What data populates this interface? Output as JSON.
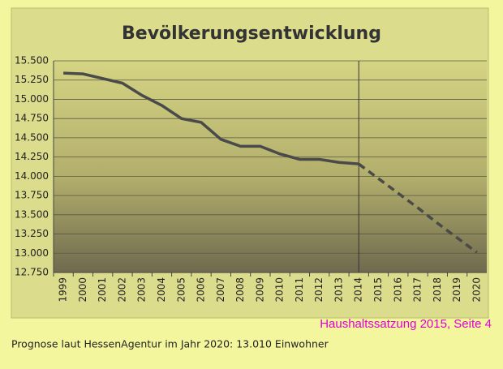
{
  "chart_data": {
    "type": "line",
    "title": "Bevölkerungsentwicklung",
    "categories": [
      "1999",
      "2000",
      "2001",
      "2002",
      "2003",
      "2004",
      "2005",
      "2006",
      "2007",
      "2008",
      "2009",
      "2010",
      "2011",
      "2012",
      "2013",
      "2014",
      "2015",
      "2016",
      "2017",
      "2018",
      "2019",
      "2020"
    ],
    "series": [
      {
        "color": "#4a4a4a",
        "dashed": false,
        "values": [
          15340,
          15330,
          15270,
          15210,
          15050,
          14920,
          14750,
          14700,
          14480,
          14390,
          14390,
          14290,
          14220,
          14220,
          14180,
          14160,
          null,
          null,
          null,
          null,
          null,
          null
        ]
      },
      {
        "color": "#4a4a4a",
        "dashed": true,
        "values": [
          null,
          null,
          null,
          null,
          null,
          null,
          null,
          null,
          null,
          null,
          null,
          null,
          null,
          null,
          null,
          14160,
          13970,
          13780,
          13590,
          13390,
          13200,
          13010
        ]
      }
    ],
    "ylim": [
      12750,
      15500
    ],
    "yticks": [
      {
        "value": 12750,
        "label": "12.750"
      },
      {
        "value": 13000,
        "label": "13.000"
      },
      {
        "value": 13250,
        "label": "13.250"
      },
      {
        "value": 13500,
        "label": "13.500"
      },
      {
        "value": 13750,
        "label": "13.750"
      },
      {
        "value": 14000,
        "label": "14.000"
      },
      {
        "value": 14250,
        "label": "14.250"
      },
      {
        "value": 14500,
        "label": "14.500"
      },
      {
        "value": 14750,
        "label": "14.750"
      },
      {
        "value": 15000,
        "label": "15.000"
      },
      {
        "value": 15250,
        "label": "15.250"
      },
      {
        "value": 15500,
        "label": "15.500"
      }
    ],
    "grid": true,
    "vline": "2014",
    "source": "Haushaltssatzung 2015, Seite 4",
    "caption": "Prognose laut HessenAgentur im Jahr 2020: 13.010 Einwohner"
  }
}
